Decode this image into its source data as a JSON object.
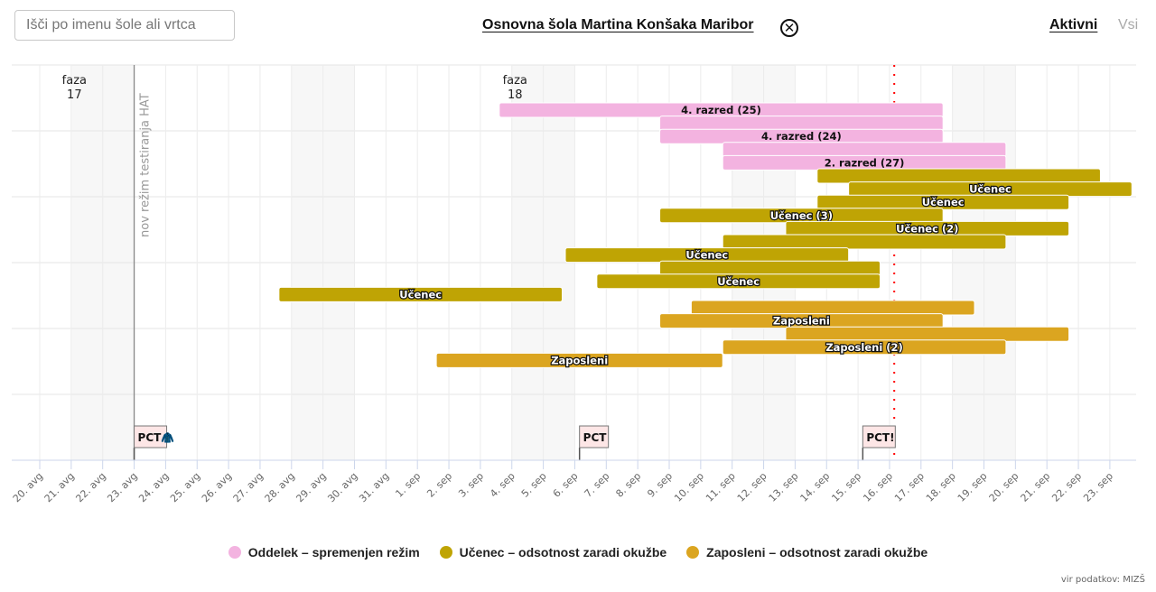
{
  "search": {
    "placeholder": "Išči po imenu šole ali vrtca",
    "value": ""
  },
  "header": {
    "school_name": "Osnovna šola Martina Konšaka Maribor",
    "close_icon": "close-circle-icon",
    "tabs": [
      {
        "label": "Aktivni",
        "active": true
      },
      {
        "label": "Vsi",
        "active": false
      }
    ]
  },
  "colors": {
    "oddelek": "#f3b3e0",
    "ucenec": "#bfa404",
    "zaposleni": "#dba520",
    "highlight": "#fcd91f",
    "today_line": "#ff0000"
  },
  "chart_data": {
    "type": "timeline",
    "x_unit": "days since 20. avg",
    "x_range": [
      -0.9,
      35
    ],
    "x_ticks": [
      "20. avg",
      "21. avg",
      "22. avg",
      "23. avg",
      "24. avg",
      "25. avg",
      "26. avg",
      "27. avg",
      "28. avg",
      "29. avg",
      "30. avg",
      "31. avg",
      "1. sep",
      "2. sep",
      "3. sep",
      "4. sep",
      "5. sep",
      "6. sep",
      "7. sep",
      "8. sep",
      "9. sep",
      "10. sep",
      "11. sep",
      "12. sep",
      "13. sep",
      "14. sep",
      "15. sep",
      "16. sep",
      "17. sep",
      "18. sep",
      "19. sep",
      "20. sep",
      "21. sep",
      "22. sep",
      "23. sep"
    ],
    "weekend_bands": [
      [
        1,
        3
      ],
      [
        8,
        10
      ],
      [
        15,
        17
      ],
      [
        22,
        24
      ],
      [
        29,
        31
      ]
    ],
    "phases": [
      {
        "label_line1": "faza",
        "label_line2": "17",
        "x": 1.1
      },
      {
        "label_line1": "faza",
        "label_line2": "18",
        "x": 15.1
      }
    ],
    "vertical_markers": [
      {
        "label": "nov režim testiranja HAT",
        "x": 3
      }
    ],
    "today_x": 27.15,
    "pct_flags": [
      {
        "label": "PCT🧥",
        "x": 3
      },
      {
        "label": "PCT",
        "x": 17.15
      },
      {
        "label": "PCT!",
        "x": 26.15
      }
    ],
    "legend": [
      {
        "key": "oddelek",
        "label": "Oddelek – spremenjen režim"
      },
      {
        "key": "ucenec",
        "label": "Učenec – odsotnost zaradi okužbe"
      },
      {
        "key": "zaposleni",
        "label": "Zaposleni – odsotnost zaradi okužbe"
      }
    ],
    "bars": [
      {
        "type": "oddelek",
        "row": 0,
        "start": 14.6,
        "end": 28.7,
        "label": "4. razred (25)"
      },
      {
        "type": "oddelek",
        "row": 1,
        "start": 19.7,
        "end": 28.7,
        "label": ""
      },
      {
        "type": "oddelek",
        "row": 2,
        "start": 19.7,
        "end": 28.7,
        "label": "4. razred (24)"
      },
      {
        "type": "oddelek",
        "row": 3,
        "start": 21.7,
        "end": 30.7,
        "label": ""
      },
      {
        "type": "oddelek",
        "row": 4,
        "start": 21.7,
        "end": 30.7,
        "label": "2. razred (27)"
      },
      {
        "type": "ucenec",
        "row": 5,
        "start": 24.7,
        "end": 33.7,
        "label": ""
      },
      {
        "type": "ucenec",
        "row": 6,
        "start": 25.7,
        "end": 34.7,
        "label": "Učenec"
      },
      {
        "type": "ucenec",
        "row": 7,
        "start": 24.7,
        "end": 32.7,
        "label": "Učenec"
      },
      {
        "type": "ucenec",
        "row": 8,
        "start": 19.7,
        "end": 28.7,
        "label": "Učenec (3)"
      },
      {
        "type": "ucenec",
        "row": 9,
        "start": 23.7,
        "end": 32.7,
        "label": "Učenec (2)"
      },
      {
        "type": "ucenec",
        "row": 10,
        "start": 21.7,
        "end": 30.7,
        "label": ""
      },
      {
        "type": "ucenec",
        "row": 11,
        "start": 16.7,
        "end": 25.7,
        "label": "Učenec"
      },
      {
        "type": "ucenec",
        "row": 12,
        "start": 19.7,
        "end": 26.7,
        "label": ""
      },
      {
        "type": "ucenec",
        "row": 13,
        "start": 17.7,
        "end": 26.7,
        "label": "Učenec"
      },
      {
        "type": "ucenec",
        "row": 14,
        "start": 7.6,
        "end": 16.6,
        "label": "Učenec"
      },
      {
        "type": "zaposleni",
        "row": 15,
        "start": 20.7,
        "end": 29.7,
        "label": ""
      },
      {
        "type": "zaposleni",
        "row": 16,
        "start": 19.7,
        "end": 28.7,
        "label": "Zaposleni"
      },
      {
        "type": "zaposleni",
        "row": 17,
        "start": 23.7,
        "end": 32.7,
        "label": ""
      },
      {
        "type": "zaposleni",
        "row": 18,
        "start": 21.7,
        "end": 30.7,
        "label": "Zaposleni (2)"
      },
      {
        "type": "zaposleni",
        "row": 19,
        "start": 12.6,
        "end": 21.7,
        "label": "Zaposleni"
      }
    ]
  },
  "footer": {
    "source": "vir podatkov: MIZŠ"
  }
}
